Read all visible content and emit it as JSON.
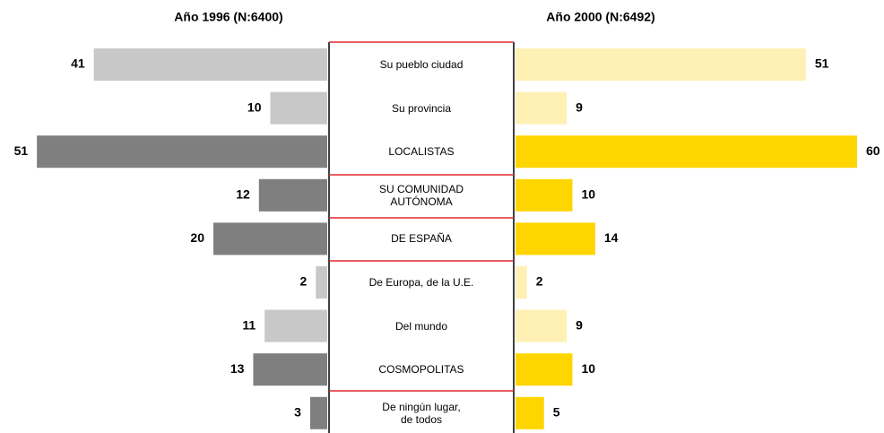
{
  "chart_data": {
    "type": "butterfly",
    "categories": [
      "Su pueblo ciudad",
      "Su provincia",
      "LOCALISTAS",
      "SU COMUNIDAD\nAUTÓNOMA",
      "DE ESPAÑA",
      "De Europa, de la U.E.",
      "Del mundo",
      "COSMOPOLITAS",
      "De ningún lugar,\nde todos"
    ],
    "series": [
      {
        "name": "Año 1996 (N:6400)",
        "values": [
          41,
          10,
          51,
          12,
          20,
          2,
          11,
          13,
          3
        ],
        "colors": [
          "#c8c8c8",
          "#c8c8c8",
          "#7f7f7f",
          "#7f7f7f",
          "#7f7f7f",
          "#c8c8c8",
          "#c8c8c8",
          "#7f7f7f",
          "#7f7f7f"
        ]
      },
      {
        "name": "Año 2000 (N:6492)",
        "values": [
          51,
          9,
          60,
          10,
          14,
          2,
          9,
          10,
          5
        ],
        "colors": [
          "#fff0b4",
          "#fff0b4",
          "#ffd500",
          "#ffd500",
          "#ffd500",
          "#fff0b4",
          "#fff0b4",
          "#ffd500",
          "#ffd500"
        ]
      }
    ]
  }
}
